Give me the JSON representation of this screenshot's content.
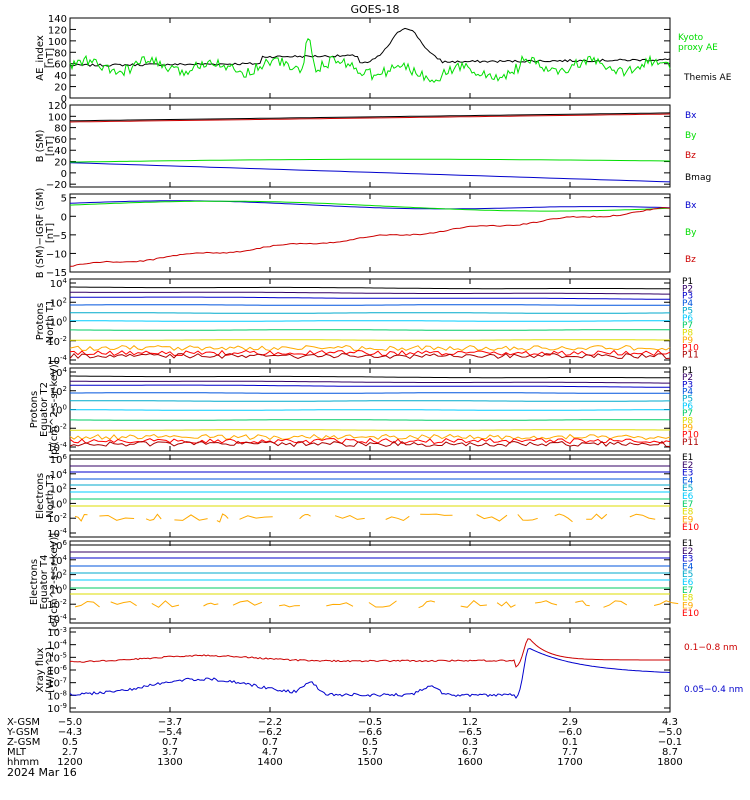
{
  "title": "GOES-18",
  "date_label": "2024 Mar 16",
  "colors": {
    "black": "#000000",
    "green": "#00dd00",
    "blue": "#0000cc",
    "red": "#cc0000",
    "navy": "#000080",
    "cyan": "#00aacc",
    "sky": "#00ccff",
    "lime": "#00cc66",
    "yellow": "#dddd00",
    "orange": "#ffaa00",
    "darkred": "#aa0000"
  },
  "chart_data": [
    {
      "type": "line",
      "ylabel": [
        "AE_index",
        "[nT]"
      ],
      "ylim": [
        0,
        140
      ],
      "yticks": [
        "140",
        "120",
        "100",
        "80",
        "60",
        "40",
        "20",
        "0"
      ],
      "series": [
        {
          "name": "Kyoto",
          "color": "#00dd00"
        },
        {
          "name": "proxy AE",
          "color": "#00dd00"
        },
        {
          "name": "Themis AE",
          "color": "#000000"
        }
      ]
    },
    {
      "type": "line",
      "ylabel": [
        "B (SM)",
        "[nT]"
      ],
      "ylim": [
        -25,
        120
      ],
      "yticks": [
        "120",
        "100",
        "80",
        "60",
        "40",
        "20",
        "0",
        "−20"
      ],
      "series": [
        {
          "name": "Bx",
          "color": "#0000cc",
          "values": [
            18,
            -16
          ]
        },
        {
          "name": "By",
          "color": "#00dd00",
          "values": [
            19,
            23
          ]
        },
        {
          "name": "Bz",
          "color": "#cc0000",
          "values": [
            90,
            104
          ]
        },
        {
          "name": "Bmag",
          "color": "#000000"
        }
      ]
    },
    {
      "type": "line",
      "ylabel": [
        "B (SM)−IGRF (SM)",
        "[nT]"
      ],
      "ylim": [
        -15,
        6
      ],
      "yticks": [
        "5",
        "0",
        "−5",
        "−10",
        "−15"
      ],
      "series": [
        {
          "name": "Bx",
          "color": "#0000cc",
          "values": [
            4,
            0
          ]
        },
        {
          "name": "By",
          "color": "#00dd00",
          "values": [
            3,
            3
          ]
        },
        {
          "name": "Bz",
          "color": "#cc0000",
          "values": [
            -13.5,
            2
          ]
        }
      ]
    },
    {
      "type": "line",
      "ylabel": [
        "Protons",
        "North T1"
      ],
      "log": true,
      "yticks": [
        "10^4",
        "10^2",
        "10^0",
        "10^-2",
        "10^-4"
      ],
      "legend": [
        "P1",
        "P2",
        "P3",
        "P4",
        "P5",
        "P6",
        "P7",
        "P8",
        "P9",
        "P10",
        "P11"
      ]
    },
    {
      "type": "line",
      "ylabel": [
        "Protons",
        "Equator T2",
        "[p/(cm^2-s-sr-keV)]"
      ],
      "log": true,
      "yticks": [
        "10^4",
        "10^2",
        "10^0",
        "10^-2",
        "10^-4"
      ],
      "legend": [
        "P1",
        "P2",
        "P3",
        "P4",
        "P5",
        "P6",
        "P7",
        "P8",
        "P9",
        "P10",
        "P11"
      ]
    },
    {
      "type": "line",
      "ylabel": [
        "Electrons",
        "North T3"
      ],
      "log": true,
      "yticks": [
        "10^6",
        "10^4",
        "10^2",
        "10^0",
        "10^-2",
        "10^-4"
      ],
      "legend": [
        "E1",
        "E2",
        "E3",
        "E4",
        "E5",
        "E6",
        "E7",
        "E8",
        "E9",
        "E10"
      ]
    },
    {
      "type": "line",
      "ylabel": [
        "Electrons",
        "Equator T4",
        "[e/(cm^2-s-sr-keV)]"
      ],
      "log": true,
      "yticks": [
        "10^6",
        "10^4",
        "10^2",
        "10^0",
        "10^-2",
        "10^-4"
      ],
      "legend": [
        "E1",
        "E2",
        "E3",
        "E4",
        "E5",
        "E6",
        "E7",
        "E8",
        "E9",
        "E10"
      ]
    },
    {
      "type": "line",
      "ylabel": [
        "Xray flux",
        "[W/m^2]"
      ],
      "log": true,
      "yticks": [
        "10^-3",
        "10^-4",
        "10^-5",
        "10^-6",
        "10^-7",
        "10^-8",
        "10^-9"
      ],
      "series": [
        {
          "name": "0.1−0.8 nm",
          "color": "#cc0000"
        },
        {
          "name": "0.05−0.4 nm",
          "color": "#0000cc"
        }
      ]
    }
  ],
  "x_axis": {
    "row_labels": [
      "X-GSM",
      "Y-GSM",
      "Z-GSM",
      "MLT",
      "hhmm"
    ],
    "columns": [
      [
        "−5.0",
        "−4.3",
        "0.5",
        "2.7",
        "1200"
      ],
      [
        "−3.7",
        "−5.4",
        "0.7",
        "3.7",
        "1300"
      ],
      [
        "−2.2",
        "−6.2",
        "0.7",
        "4.7",
        "1400"
      ],
      [
        "−0.5",
        "−6.6",
        "0.5",
        "5.7",
        "1500"
      ],
      [
        "1.2",
        "−6.5",
        "0.3",
        "6.7",
        "1600"
      ],
      [
        "2.9",
        "−6.0",
        "0.1",
        "7.7",
        "1700"
      ],
      [
        "4.3",
        "−5.0",
        "−0.1",
        "8.7",
        "1800"
      ]
    ]
  }
}
